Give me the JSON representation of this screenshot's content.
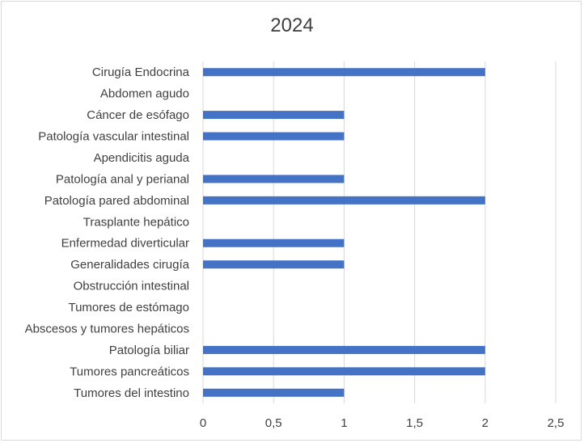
{
  "chart_data": {
    "type": "bar",
    "orientation": "horizontal",
    "title": "2024",
    "categories": [
      "Cirugía Endocrina",
      "Abdomen agudo",
      "Cáncer de esófago",
      "Patología vascular intestinal",
      "Apendicitis aguda",
      "Patología anal y perianal",
      "Patología pared abdominal",
      "Trasplante hepático",
      "Enfermedad diverticular",
      "Generalidades cirugía",
      "Obstrucción intestinal",
      "Tumores de estómago",
      "Abscesos y tumores hepáticos",
      "Patología biliar",
      "Tumores pancreáticos",
      "Tumores del intestino"
    ],
    "values": [
      2,
      0,
      1,
      1,
      0,
      1,
      2,
      0,
      1,
      1,
      0,
      0,
      0,
      2,
      2,
      1
    ],
    "xlim": [
      0,
      2.5
    ],
    "xticks": [
      "0",
      "0,5",
      "1",
      "1,5",
      "2",
      "2,5"
    ],
    "grid": "vertical",
    "colors": {
      "bar": "#4472c4",
      "grid": "#d9d9d9",
      "text": "#404040"
    }
  }
}
